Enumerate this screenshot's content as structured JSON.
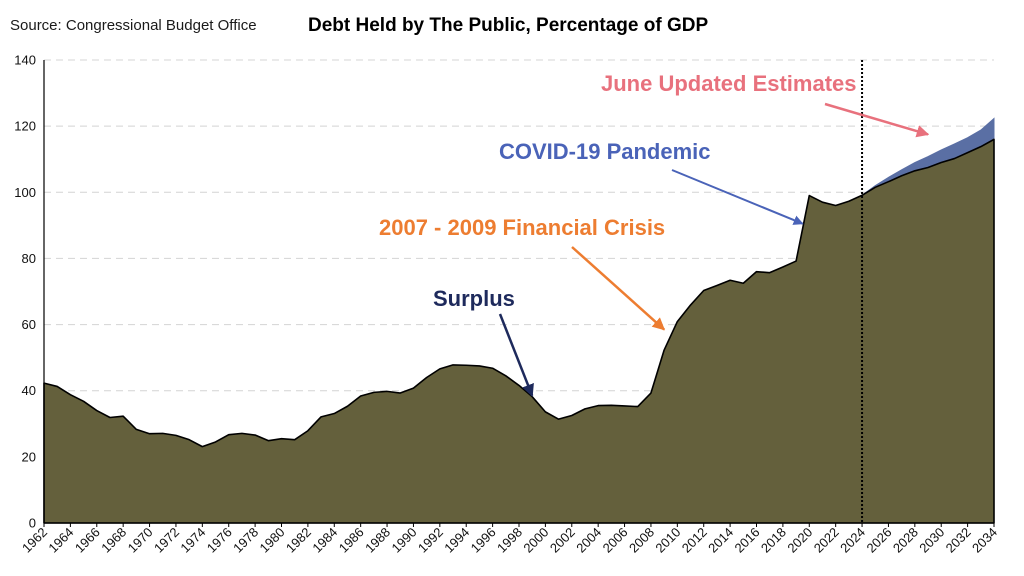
{
  "header": {
    "source": "Source: Congressional Budget Office",
    "title": "Debt Held by The Public, Percentage of GDP"
  },
  "chart_data": {
    "type": "area",
    "title": "Debt Held by The Public, Percentage of GDP",
    "xlabel": "",
    "ylabel": "",
    "xlim": [
      1962,
      2034
    ],
    "ylim": [
      0,
      140
    ],
    "y_ticks": [
      0,
      20,
      40,
      60,
      80,
      100,
      120,
      140
    ],
    "x_tick_labels": [
      "1962",
      "1964",
      "1966",
      "1968",
      "1970",
      "1972",
      "1974",
      "1976",
      "1978",
      "1980",
      "1982",
      "1984",
      "1986",
      "1988",
      "1990",
      "1992",
      "1994",
      "1996",
      "1998",
      "2000",
      "2002",
      "2004",
      "2006",
      "2008",
      "2010",
      "2012",
      "2014",
      "2016",
      "2018",
      "2020",
      "2022",
      "2024",
      "2026",
      "2028",
      "2030",
      "2032",
      "2034"
    ],
    "grid": "horizontal dashed",
    "colors": {
      "base": "#64603c",
      "update": "#5a6fa4",
      "outline": "#000000"
    },
    "vertical_marker_year": 2024,
    "series": [
      {
        "x": [
          1962,
          1963,
          1964,
          1965,
          1966,
          1967,
          1968,
          1969,
          1970,
          1971,
          1972,
          1973,
          1974,
          1975,
          1976,
          1977,
          1978,
          1979,
          1980,
          1981,
          1982,
          1983,
          1984,
          1985,
          1986,
          1987,
          1988,
          1989,
          1990,
          1991,
          1992,
          1993,
          1994,
          1995,
          1996,
          1997,
          1998,
          1999,
          2000,
          2001,
          2002,
          2003,
          2004,
          2005,
          2006,
          2007,
          2008,
          2009,
          2010,
          2011,
          2012,
          2013,
          2014,
          2015,
          2016,
          2017,
          2018,
          2019,
          2020,
          2021,
          2022,
          2023,
          2024,
          2025,
          2026,
          2027,
          2028,
          2029,
          2030,
          2031,
          2032,
          2033,
          2034
        ],
        "values": [
          42.3,
          41.3,
          38.8,
          36.8,
          34.0,
          31.9,
          32.3,
          28.3,
          27.0,
          27.1,
          26.5,
          25.2,
          23.1,
          24.5,
          26.7,
          27.1,
          26.6,
          24.9,
          25.5,
          25.2,
          27.9,
          32.1,
          33.1,
          35.3,
          38.4,
          39.5,
          39.8,
          39.3,
          40.8,
          44.0,
          46.6,
          47.8,
          47.7,
          47.5,
          46.8,
          44.5,
          41.6,
          38.2,
          33.6,
          31.4,
          32.5,
          34.5,
          35.5,
          35.6,
          35.4,
          35.2,
          39.3,
          52.3,
          60.9,
          65.9,
          70.3,
          71.8,
          73.4,
          72.5,
          76.0,
          75.7,
          77.4,
          79.2,
          99.0,
          97.0,
          96.0,
          97.3,
          99.1,
          101.5,
          103.2,
          105.0,
          106.5,
          107.5,
          109.0,
          110.2,
          112.0,
          113.8,
          116.0
        ]
      },
      {
        "x": [
          2024,
          2025,
          2026,
          2027,
          2028,
          2029,
          2030,
          2031,
          2032,
          2033,
          2034
        ],
        "values": [
          99.1,
          102.0,
          104.5,
          106.8,
          109.0,
          110.8,
          112.8,
          114.6,
          116.5,
          118.8,
          122.3
        ]
      }
    ],
    "annotations": [
      {
        "text": "Surplus",
        "color": "#1e2a5c",
        "year": 1999,
        "value": 38.5
      },
      {
        "text": "2007 - 2009 Financial Crisis",
        "color": "#ed7d31",
        "year": 2009,
        "value": 58.5
      },
      {
        "text": "COVID-19 Pandemic",
        "color": "#4a63b8",
        "year": 2019.5,
        "value": 90.5
      },
      {
        "text": "June Updated Estimates",
        "color": "#e8717d",
        "year": 2029,
        "value": 117.5
      }
    ]
  }
}
